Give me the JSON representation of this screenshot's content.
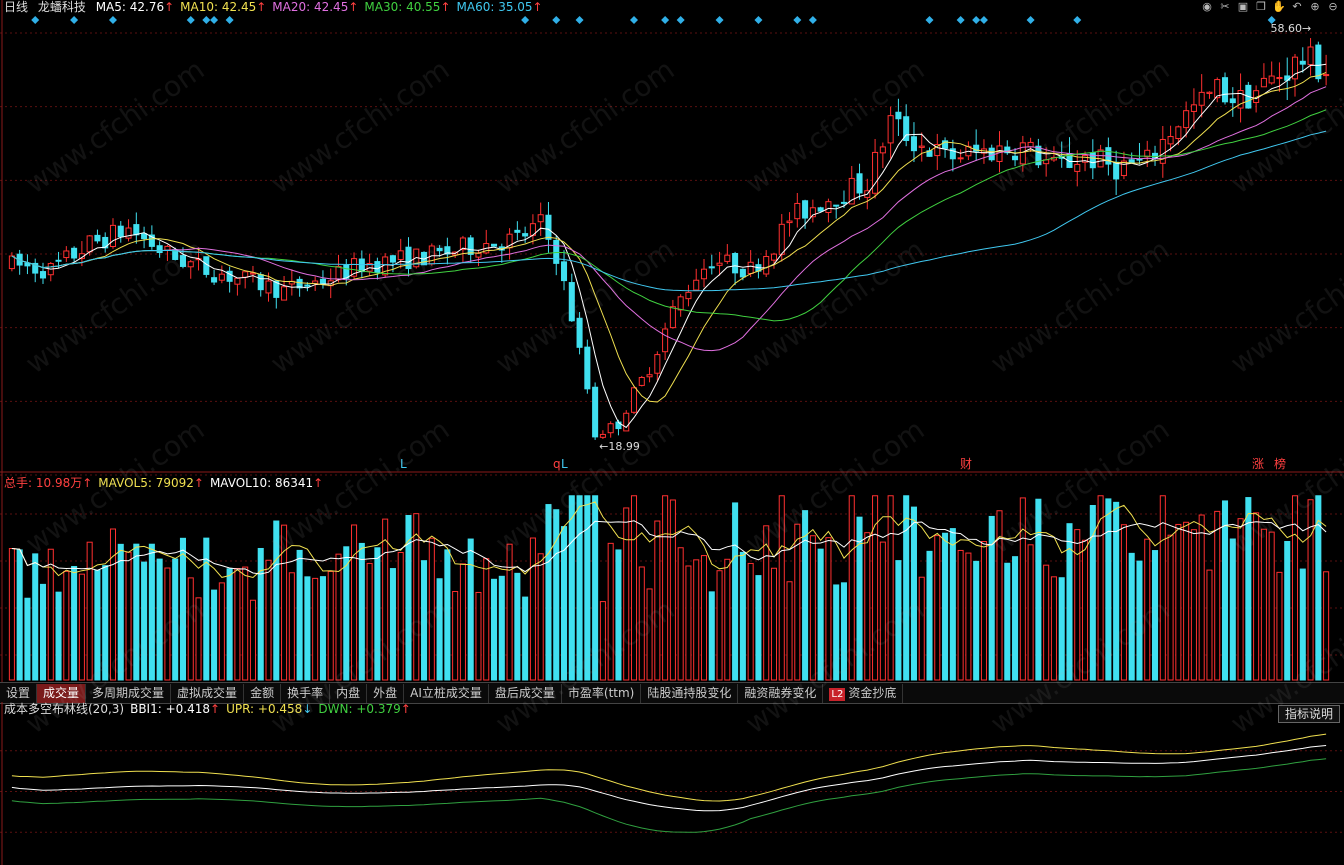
{
  "main_legend": {
    "period": "日线",
    "stock_name": "龙蟠科技",
    "items": [
      {
        "text": "MA5: 42.76",
        "arrow": "↑",
        "color": "#ffffff"
      },
      {
        "text": "MA10: 42.45",
        "arrow": "↑",
        "color": "#f0e050"
      },
      {
        "text": "MA20: 42.45",
        "arrow": "↑",
        "color": "#e070e0"
      },
      {
        "text": "MA30: 40.55",
        "arrow": "↑",
        "color": "#40d040"
      },
      {
        "text": "MA60: 35.05",
        "arrow": "↑",
        "color": "#40c8f0"
      }
    ]
  },
  "price_annotations": {
    "high": "58.60",
    "low": "18.99"
  },
  "event_markers": [
    {
      "text": "L",
      "color": "#40c8f0"
    },
    {
      "text": "q",
      "color": "#ff4040"
    },
    {
      "text": "L",
      "color": "#40c8f0"
    },
    {
      "text": "财",
      "color": "#ff4040"
    },
    {
      "text": "涨",
      "color": "#ff4040"
    },
    {
      "text": "榜",
      "color": "#ff4040"
    }
  ],
  "vol_legend": {
    "items": [
      {
        "text": "总手: 10.98万",
        "arrow": "↑",
        "color": "#ff4040"
      },
      {
        "text": "MAVOL5: 79092",
        "arrow": "↑",
        "color": "#f0e050"
      },
      {
        "text": "MAVOL10: 86341",
        "arrow": "↑",
        "color": "#ffffff"
      }
    ]
  },
  "tabs": [
    {
      "label": "设置"
    },
    {
      "label": "成交量",
      "active": true
    },
    {
      "label": "多周期成交量"
    },
    {
      "label": "虚拟成交量"
    },
    {
      "label": "金额"
    },
    {
      "label": "换手率"
    },
    {
      "label": "内盘"
    },
    {
      "label": "外盘"
    },
    {
      "label": "AI立桩成交量"
    },
    {
      "label": "盘后成交量"
    },
    {
      "label": "市盈率(ttm)"
    },
    {
      "label": "陆股通持股变化"
    },
    {
      "label": "融资融券变化"
    },
    {
      "label": "资金抄底",
      "badge": "L2"
    }
  ],
  "indicator_legend": {
    "items": [
      {
        "text": "成本多空布林线(20,3)",
        "arrow": "",
        "color": "#dddddd"
      },
      {
        "text": "BBI1: +0.418",
        "arrow": "↑",
        "color": "#ffffff"
      },
      {
        "text": "UPR: +0.458",
        "arrow": "↓",
        "color": "#f0e050"
      },
      {
        "text": "DWN: +0.379",
        "arrow": "↑",
        "color": "#40d040"
      }
    ],
    "explain_button": "指标说明"
  },
  "watermark": "www.cfchi.com",
  "toolbar_icons": [
    "eye-icon",
    "scissors-icon",
    "lock-icon",
    "copy-icon",
    "hand-icon",
    "undo-icon",
    "zoom-in-icon",
    "zoom-out-icon"
  ],
  "chart_data": {
    "type": "candlestick",
    "ylim": [
      17,
      60
    ],
    "series_count": 170,
    "price_keypoints": [
      [
        0,
        36
      ],
      [
        5,
        35.5
      ],
      [
        10,
        38
      ],
      [
        15,
        39.5
      ],
      [
        20,
        37
      ],
      [
        25,
        35.5
      ],
      [
        30,
        34.5
      ],
      [
        35,
        33.5
      ],
      [
        40,
        34.5
      ],
      [
        45,
        36
      ],
      [
        50,
        36.5
      ],
      [
        55,
        37
      ],
      [
        60,
        38
      ],
      [
        65,
        38.5
      ],
      [
        68,
        40
      ],
      [
        70,
        37
      ],
      [
        72,
        31
      ],
      [
        74,
        24
      ],
      [
        75,
        19.5
      ],
      [
        78,
        20.5
      ],
      [
        80,
        23.5
      ],
      [
        82,
        26
      ],
      [
        85,
        31.5
      ],
      [
        88,
        35
      ],
      [
        90,
        36.5
      ],
      [
        95,
        35.5
      ],
      [
        98,
        38
      ],
      [
        100,
        40.5
      ],
      [
        105,
        42.5
      ],
      [
        110,
        44
      ],
      [
        113,
        50
      ],
      [
        116,
        48
      ],
      [
        120,
        46.5
      ],
      [
        125,
        47
      ],
      [
        130,
        47.5
      ],
      [
        134,
        45.5
      ],
      [
        138,
        46.5
      ],
      [
        142,
        45.5
      ],
      [
        146,
        46
      ],
      [
        150,
        50
      ],
      [
        155,
        53
      ],
      [
        158,
        52
      ],
      [
        162,
        54
      ],
      [
        166,
        56
      ],
      [
        169,
        55
      ]
    ],
    "volume_range": [
      20000,
      180000
    ],
    "volume_legend_values": {
      "total": "10.98万",
      "mavol5": 79092,
      "mavol10": 86341
    },
    "indicator_values": {
      "BBI1": 0.418,
      "UPR": 0.458,
      "DWN": 0.379
    }
  }
}
